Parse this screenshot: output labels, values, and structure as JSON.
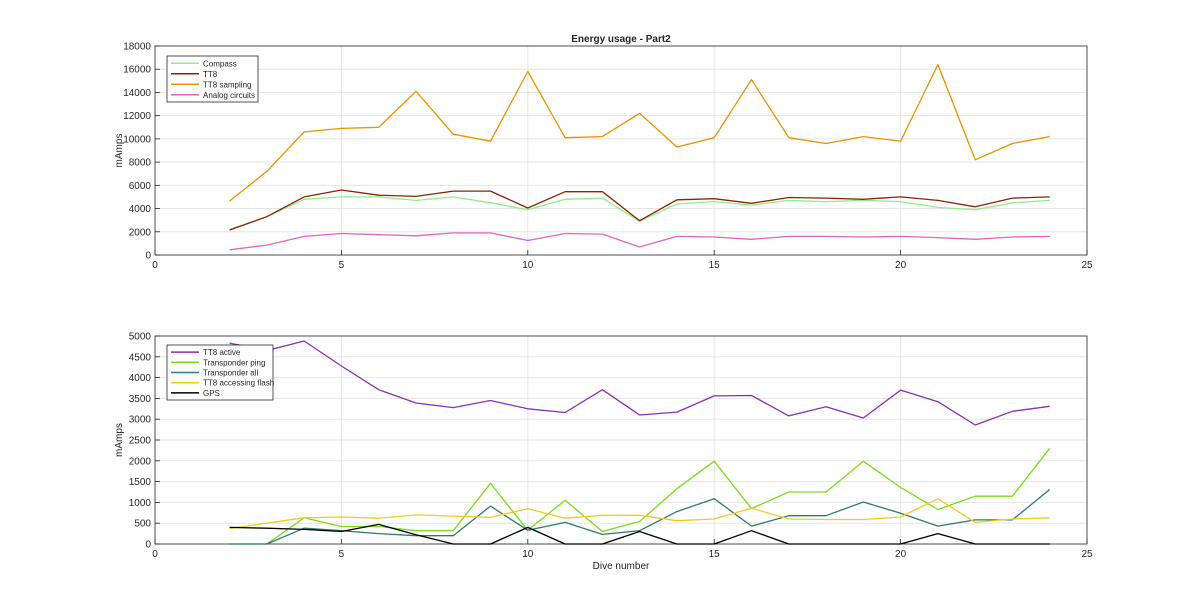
{
  "chart_data": [
    {
      "type": "line",
      "title": "Energy usage - Part2",
      "xlabel": "",
      "ylabel": "mAmps",
      "xlim": [
        0,
        25
      ],
      "ylim": [
        0,
        18000
      ],
      "xticks": [
        0,
        5,
        10,
        15,
        20,
        25
      ],
      "yticks": [
        0,
        2000,
        4000,
        6000,
        8000,
        10000,
        12000,
        14000,
        16000,
        18000
      ],
      "grid": true,
      "legend_position": "top-left",
      "x": [
        2,
        3,
        4,
        5,
        6,
        7,
        8,
        9,
        10,
        11,
        12,
        13,
        14,
        15,
        16,
        17,
        18,
        19,
        20,
        21,
        22,
        23,
        24
      ],
      "series": [
        {
          "name": "Compass",
          "color": "#90ee90",
          "values": [
            2200,
            3300,
            4800,
            5000,
            5000,
            4700,
            5000,
            4500,
            3900,
            4800,
            4900,
            2900,
            4400,
            4600,
            4300,
            4700,
            4600,
            4700,
            4600,
            4100,
            3900,
            4500,
            4700
          ]
        },
        {
          "name": "TT8",
          "color": "#8b2500",
          "values": [
            2150,
            3300,
            5000,
            5600,
            5150,
            5050,
            5500,
            5500,
            4050,
            5450,
            5450,
            2950,
            4750,
            4850,
            4450,
            4950,
            4900,
            4800,
            5000,
            4700,
            4150,
            4900,
            5000
          ]
        },
        {
          "name": "TT8 sampling",
          "color": "#e69500",
          "values": [
            4650,
            7200,
            10600,
            10900,
            11000,
            14100,
            10400,
            9800,
            15800,
            10100,
            10200,
            12200,
            9300,
            10100,
            15100,
            10100,
            9600,
            10200,
            9800,
            16400,
            8200,
            9600,
            10200
          ]
        },
        {
          "name": "Analog circuits",
          "color": "#e066c0",
          "values": [
            450,
            850,
            1600,
            1850,
            1750,
            1650,
            1900,
            1900,
            1250,
            1850,
            1800,
            700,
            1600,
            1550,
            1350,
            1600,
            1600,
            1550,
            1600,
            1500,
            1350,
            1550,
            1600
          ]
        }
      ]
    },
    {
      "type": "line",
      "title": "",
      "xlabel": "Dive number",
      "ylabel": "mAmps",
      "xlim": [
        0,
        25
      ],
      "ylim": [
        0,
        5000
      ],
      "xticks": [
        0,
        5,
        10,
        15,
        20,
        25
      ],
      "yticks": [
        0,
        500,
        1000,
        1500,
        2000,
        2500,
        3000,
        3500,
        4000,
        4500,
        5000
      ],
      "grid": true,
      "legend_position": "top-left",
      "x": [
        2,
        3,
        4,
        5,
        6,
        7,
        8,
        9,
        10,
        11,
        12,
        13,
        14,
        15,
        16,
        17,
        18,
        19,
        20,
        21,
        22,
        23,
        24
      ],
      "series": [
        {
          "name": "TT8 active",
          "color": "#8b2fb0",
          "values": [
            4830,
            4650,
            4880,
            4280,
            3710,
            3390,
            3280,
            3450,
            3250,
            3160,
            3710,
            3100,
            3170,
            3560,
            3570,
            3080,
            3300,
            3030,
            3700,
            3420,
            2860,
            3190,
            3310
          ]
        },
        {
          "name": "Transponder ping",
          "color": "#7cdc1e",
          "values": [
            0,
            0,
            630,
            420,
            420,
            320,
            320,
            1460,
            330,
            1050,
            300,
            540,
            1330,
            1990,
            850,
            1250,
            1250,
            1990,
            1360,
            830,
            1150,
            1150,
            2300
          ]
        },
        {
          "name": "Transponder all",
          "color": "#2e7d6b",
          "values": [
            0,
            0,
            380,
            320,
            250,
            200,
            200,
            910,
            330,
            520,
            230,
            320,
            780,
            1090,
            430,
            680,
            680,
            1010,
            740,
            430,
            580,
            580,
            1310
          ]
        },
        {
          "name": "TT8 accessing flash",
          "color": "#f0cc20",
          "values": [
            370,
            500,
            630,
            650,
            620,
            700,
            670,
            640,
            850,
            620,
            690,
            690,
            560,
            600,
            860,
            600,
            590,
            590,
            650,
            1090,
            520,
            600,
            630
          ]
        },
        {
          "name": "GPS",
          "color": "#000000",
          "values": [
            400,
            380,
            350,
            300,
            470,
            220,
            0,
            0,
            400,
            0,
            0,
            300,
            0,
            0,
            320,
            0,
            0,
            0,
            0,
            250,
            0,
            0,
            0
          ]
        }
      ]
    }
  ]
}
